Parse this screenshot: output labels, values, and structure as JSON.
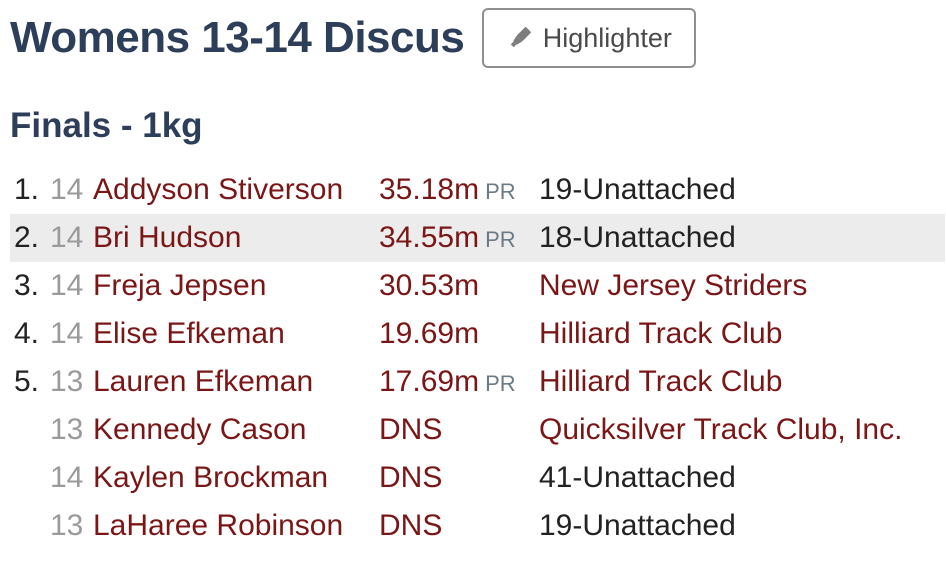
{
  "header": {
    "event_title": "Womens 13-14 Discus",
    "highlighter_label": "Highlighter"
  },
  "round": {
    "title": "Finals - 1kg"
  },
  "results": [
    {
      "place": "1.",
      "grade": "14",
      "athlete": "Addyson Stiverson",
      "mark": "35.18m",
      "pr": "PR",
      "team": "19-Unattached",
      "team_linked": false
    },
    {
      "place": "2.",
      "grade": "14",
      "athlete": "Bri Hudson",
      "mark": "34.55m",
      "pr": "PR",
      "team": "18-Unattached",
      "team_linked": false
    },
    {
      "place": "3.",
      "grade": "14",
      "athlete": "Freja Jepsen",
      "mark": "30.53m",
      "pr": "",
      "team": "New Jersey Striders",
      "team_linked": true
    },
    {
      "place": "4.",
      "grade": "14",
      "athlete": "Elise Efkeman",
      "mark": "19.69m",
      "pr": "",
      "team": "Hilliard Track Club",
      "team_linked": true
    },
    {
      "place": "5.",
      "grade": "13",
      "athlete": "Lauren Efkeman",
      "mark": "17.69m",
      "pr": "PR",
      "team": "Hilliard Track Club",
      "team_linked": true
    },
    {
      "place": "",
      "grade": "13",
      "athlete": "Kennedy Cason",
      "mark": "DNS",
      "pr": "",
      "team": "Quicksilver Track Club, Inc.",
      "team_linked": true
    },
    {
      "place": "",
      "grade": "14",
      "athlete": "Kaylen Brockman",
      "mark": "DNS",
      "pr": "",
      "team": "41-Unattached",
      "team_linked": false
    },
    {
      "place": "",
      "grade": "13",
      "athlete": "LaHaree Robinson",
      "mark": "DNS",
      "pr": "",
      "team": "19-Unattached",
      "team_linked": false
    }
  ],
  "colors": {
    "heading": "#2c3e5a",
    "link": "#7a1616",
    "muted": "#9a9a9a",
    "row_highlight": "#ececec"
  },
  "icons": {
    "highlighter": "highlighter-icon"
  }
}
